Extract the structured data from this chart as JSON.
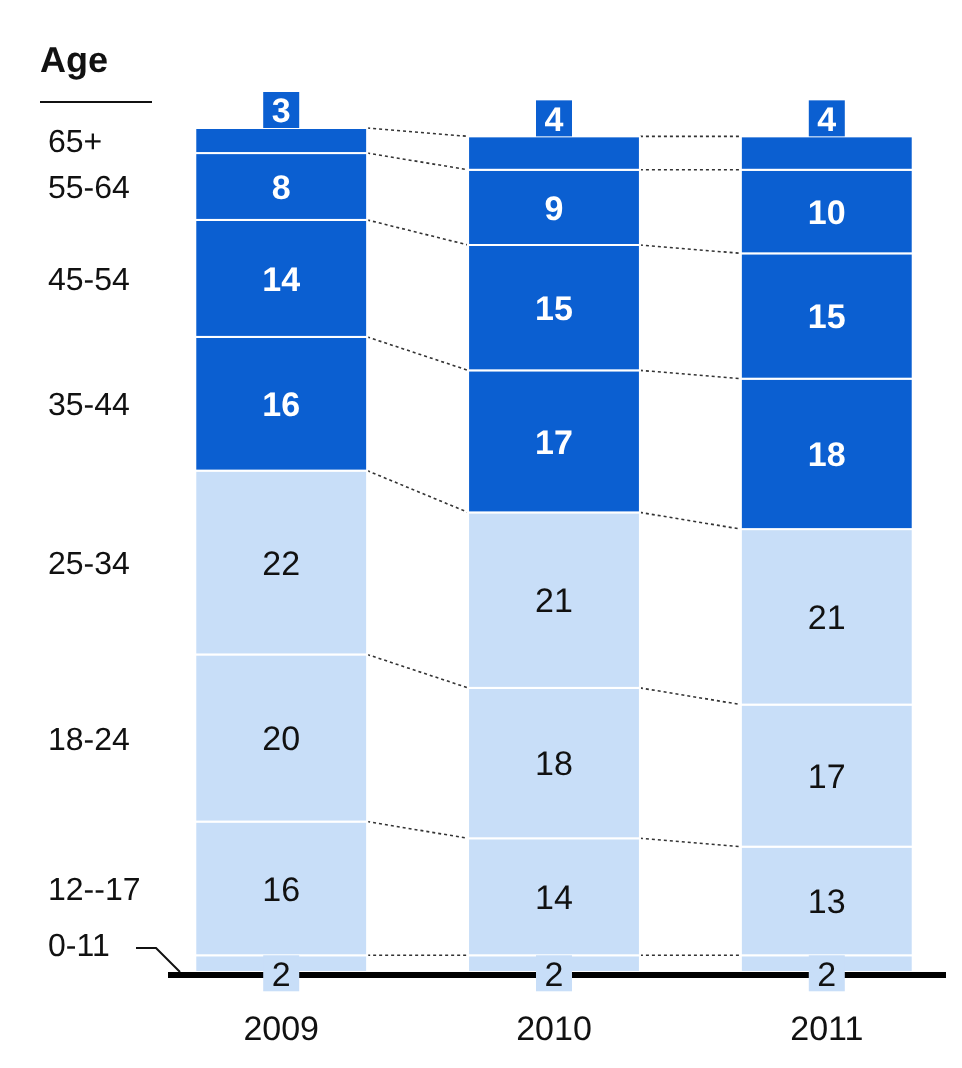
{
  "chart_data": {
    "type": "bar",
    "stacked": true,
    "data_labels": true,
    "legend_title": "Age",
    "legend": "left",
    "categories": [
      "2009",
      "2010",
      "2011"
    ],
    "series": [
      {
        "name": "0-11",
        "color": "#c8def8",
        "values": [
          2,
          2,
          2
        ]
      },
      {
        "name": "12--17",
        "color": "#c8def8",
        "values": [
          16,
          14,
          13
        ]
      },
      {
        "name": "18-24",
        "color": "#c8def8",
        "values": [
          20,
          18,
          17
        ]
      },
      {
        "name": "25-34",
        "color": "#c8def8",
        "values": [
          22,
          21,
          21
        ]
      },
      {
        "name": "35-44",
        "color": "#0b5fd1",
        "values": [
          16,
          17,
          18
        ]
      },
      {
        "name": "45-54",
        "color": "#0b5fd1",
        "values": [
          14,
          15,
          15
        ]
      },
      {
        "name": "55-64",
        "color": "#0b5fd1",
        "values": [
          8,
          9,
          10
        ]
      },
      {
        "name": "65+",
        "color": "#0b5fd1",
        "values": [
          3,
          4,
          4
        ]
      }
    ]
  }
}
